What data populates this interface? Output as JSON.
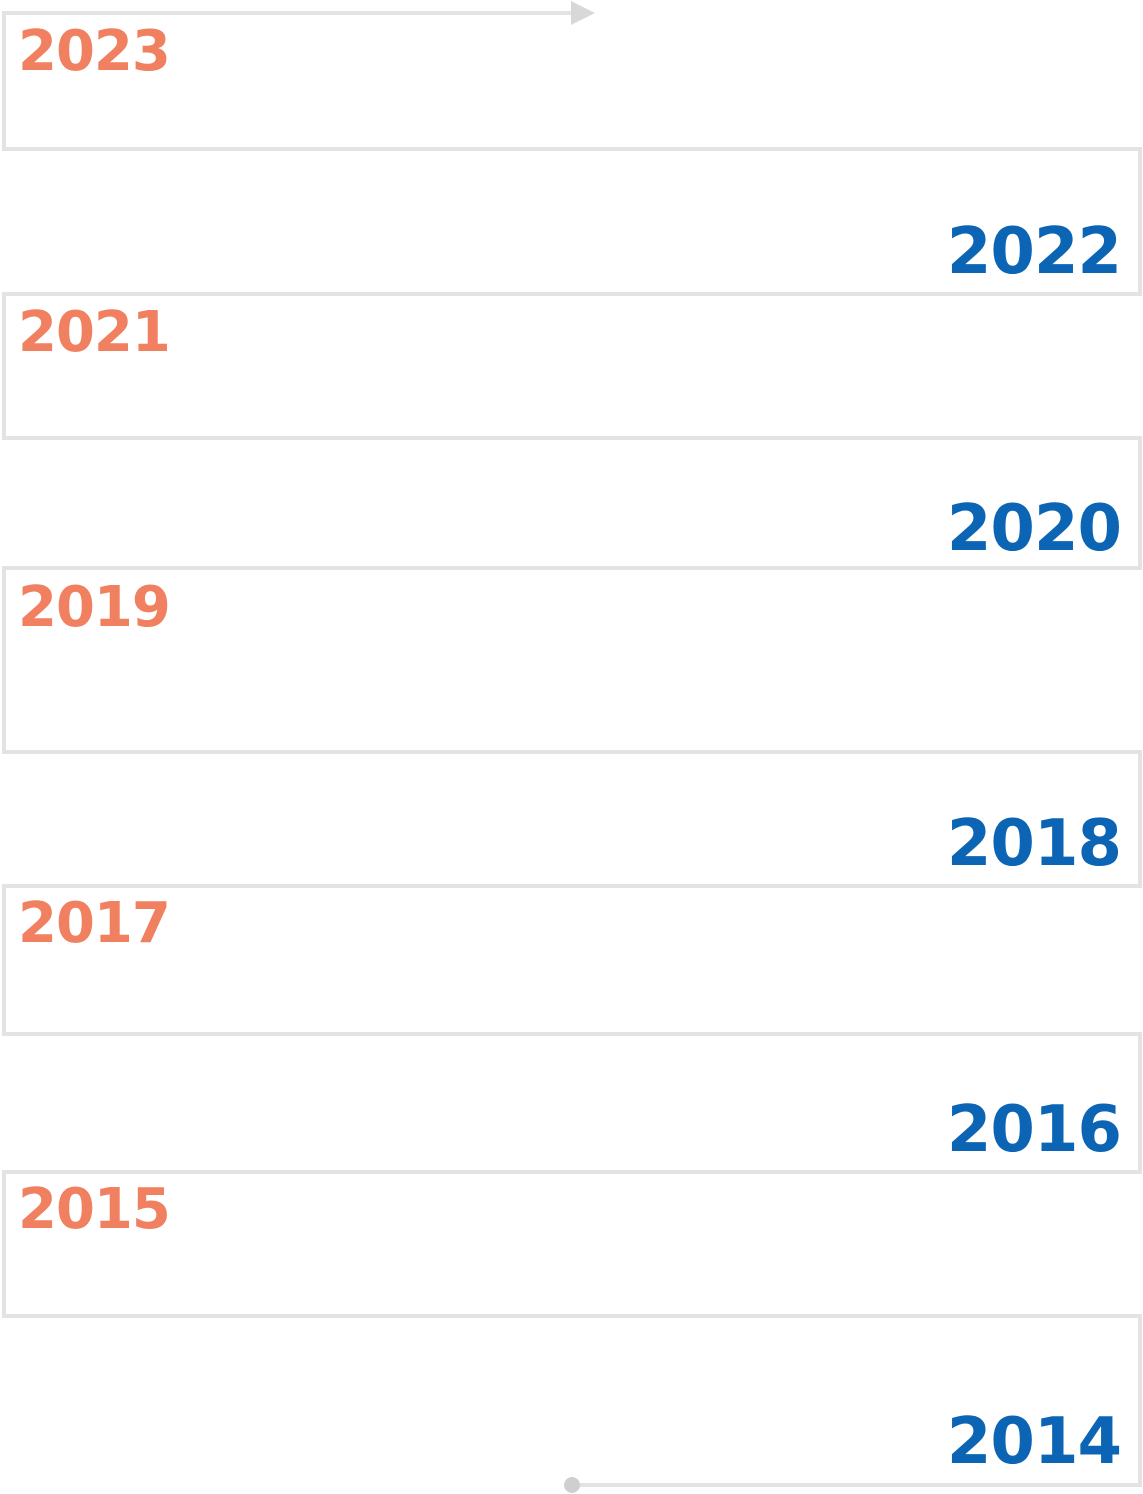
{
  "colors": {
    "path": "#e3e3e3",
    "end_dot": "#cfcfcf",
    "left_year": "#f08060",
    "right_year": "#0c65b4"
  },
  "path_icons": {
    "start": "arrow-right-icon",
    "end": "circle-dot-icon"
  },
  "years": [
    {
      "label": "2023",
      "side": "left"
    },
    {
      "label": "2022",
      "side": "right"
    },
    {
      "label": "2021",
      "side": "left"
    },
    {
      "label": "2020",
      "side": "right"
    },
    {
      "label": "2019",
      "side": "left"
    },
    {
      "label": "2018",
      "side": "right"
    },
    {
      "label": "2017",
      "side": "left"
    },
    {
      "label": "2016",
      "side": "right"
    },
    {
      "label": "2015",
      "side": "left"
    },
    {
      "label": "2014",
      "side": "right"
    }
  ]
}
